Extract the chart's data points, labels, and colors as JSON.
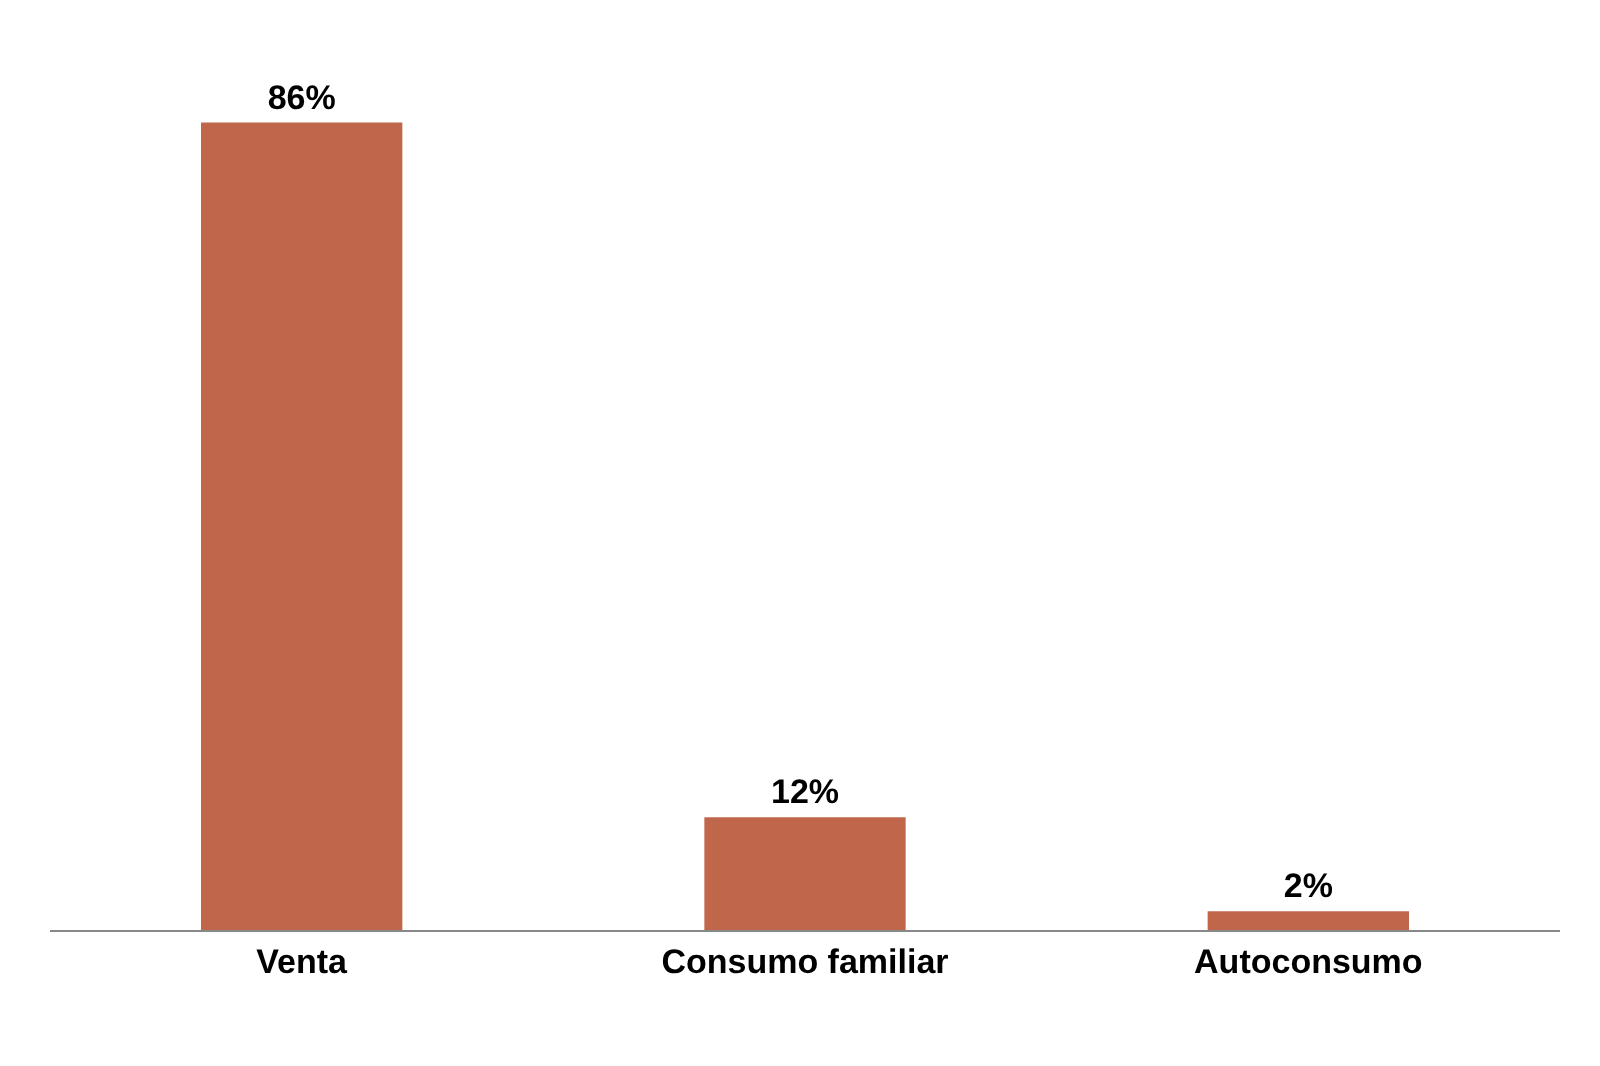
{
  "chart_data": {
    "type": "bar",
    "categories": [
      "Venta",
      "Consumo familiar",
      "Autoconsumo"
    ],
    "values": [
      86,
      12,
      2
    ],
    "value_labels": [
      "86%",
      "12%",
      "2%"
    ],
    "color": "#c0674b"
  }
}
